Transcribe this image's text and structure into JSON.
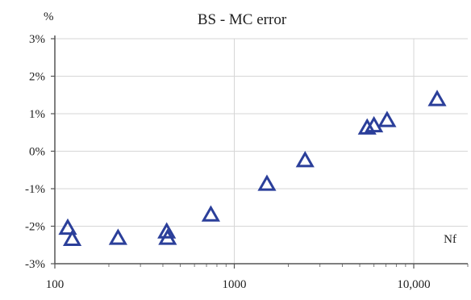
{
  "chart_data": {
    "type": "scatter",
    "title": "BS  - MC error",
    "ylabel": "%",
    "xlabel": "Nf",
    "x_scale": "log",
    "xlim": [
      100,
      20000
    ],
    "ylim": [
      -3,
      3
    ],
    "x_ticks": [
      {
        "value": 100,
        "label": "100"
      },
      {
        "value": 1000,
        "label": "1000"
      },
      {
        "value": 10000,
        "label": "10,000"
      }
    ],
    "y_ticks": [
      {
        "value": 3,
        "label": "3%"
      },
      {
        "value": 2,
        "label": "2%"
      },
      {
        "value": 1,
        "label": "1%"
      },
      {
        "value": 0,
        "label": "0%"
      },
      {
        "value": -1,
        "label": "-1%"
      },
      {
        "value": -2,
        "label": "-2%"
      },
      {
        "value": -3,
        "label": "-3%"
      }
    ],
    "grid": true,
    "marker": "triangle",
    "color": "#2b3f9a",
    "points": [
      {
        "x": 118,
        "y": -2.05
      },
      {
        "x": 125,
        "y": -2.35
      },
      {
        "x": 225,
        "y": -2.32
      },
      {
        "x": 420,
        "y": -2.15
      },
      {
        "x": 425,
        "y": -2.32
      },
      {
        "x": 740,
        "y": -1.7
      },
      {
        "x": 1520,
        "y": -0.88
      },
      {
        "x": 2480,
        "y": -0.25
      },
      {
        "x": 5500,
        "y": 0.62
      },
      {
        "x": 6000,
        "y": 0.68
      },
      {
        "x": 7100,
        "y": 0.82
      },
      {
        "x": 13500,
        "y": 1.38
      }
    ]
  }
}
